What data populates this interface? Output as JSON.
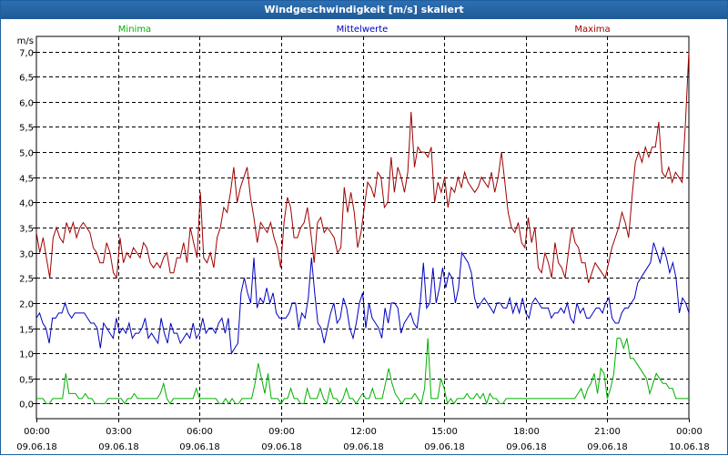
{
  "window": {
    "title": "Windgeschwindigkeit [m/s] skaliert"
  },
  "colors": {
    "min": "#00b000",
    "mean": "#0000c0",
    "max": "#a00000",
    "grid": "#000000",
    "title_bg": "#1f5fa0"
  },
  "chart_data": {
    "type": "line",
    "title": "Windgeschwindigkeit [m/s] skaliert",
    "ylabel": "m/s",
    "ylim": [
      -0.3,
      7.3
    ],
    "xlim": [
      0,
      24
    ],
    "grid": true,
    "legend_position": "top",
    "yticks": [
      "0,0",
      "0,5",
      "1,0",
      "1,5",
      "2,0",
      "2,5",
      "3,0",
      "3,5",
      "4,0",
      "4,5",
      "5,0",
      "5,5",
      "6,0",
      "6,5",
      "7,0"
    ],
    "ytick_values": [
      0,
      0.5,
      1,
      1.5,
      2,
      2.5,
      3,
      3.5,
      4,
      4.5,
      5,
      5.5,
      6,
      6.5,
      7
    ],
    "xticks": [
      {
        "time": "00:00",
        "date": "09.06.18"
      },
      {
        "time": "03:00",
        "date": "09.06.18"
      },
      {
        "time": "06:00",
        "date": "09.06.18"
      },
      {
        "time": "09:00",
        "date": "09.06.18"
      },
      {
        "time": "12:00",
        "date": "09.06.18"
      },
      {
        "time": "15:00",
        "date": "09.06.18"
      },
      {
        "time": "18:00",
        "date": "09.06.18"
      },
      {
        "time": "21:00",
        "date": "09.06.18"
      },
      {
        "time": "00:00",
        "date": "10.06.18"
      }
    ],
    "series": [
      {
        "name": "Minima",
        "values": [
          0.1,
          0.1,
          0.1,
          0.0,
          0.0,
          0.1,
          0.1,
          0.1,
          0.1,
          0.6,
          0.2,
          0.2,
          0.2,
          0.1,
          0.1,
          0.2,
          0.1,
          0.1,
          0.0,
          0.0,
          0.0,
          0.0,
          0.1,
          0.1,
          0.1,
          0.1,
          0.1,
          0.0,
          0.1,
          0.1,
          0.2,
          0.1,
          0.1,
          0.1,
          0.1,
          0.1,
          0.1,
          0.1,
          0.2,
          0.4,
          0.1,
          0.0,
          0.1,
          0.1,
          0.1,
          0.1,
          0.1,
          0.1,
          0.1,
          0.3,
          0.1,
          0.1,
          0.1,
          0.1,
          0.1,
          0.1,
          0.0,
          0.0,
          0.1,
          0.0,
          0.1,
          0.0,
          0.0,
          0.1,
          0.1,
          0.1,
          0.1,
          0.4,
          0.8,
          0.5,
          0.2,
          0.6,
          0.1,
          0.1,
          0.1,
          0.0,
          0.1,
          0.1,
          0.3,
          0.1,
          0.1,
          0.0,
          0.0,
          0.3,
          0.1,
          0.1,
          0.1,
          0.3,
          0.1,
          0.0,
          0.3,
          0.1,
          0.1,
          0.0,
          0.1,
          0.3,
          0.1,
          0.1,
          0.0,
          0.1,
          0.2,
          0.1,
          0.1,
          0.3,
          0.1,
          0.1,
          0.1,
          0.4,
          0.7,
          0.4,
          0.2,
          0.1,
          0.0,
          0.1,
          0.1,
          0.1,
          0.2,
          0.1,
          0.0,
          0.3,
          1.3,
          0.1,
          0.1,
          0.1,
          0.5,
          0.3,
          0.0,
          0.1,
          0.0,
          0.1,
          0.1,
          0.1,
          0.2,
          0.1,
          0.1,
          0.2,
          0.1,
          0.2,
          0.0,
          0.2,
          0.1,
          0.1,
          0.0,
          0.0,
          0.1,
          0.1,
          0.1,
          0.1,
          0.1,
          0.1,
          0.1,
          0.1,
          0.1,
          0.1,
          0.1,
          0.1,
          0.1,
          0.1,
          0.1,
          0.1,
          0.1,
          0.1,
          0.1,
          0.1,
          0.1,
          0.1,
          0.2,
          0.3,
          0.1,
          0.3,
          0.4,
          0.6,
          0.2,
          0.7,
          0.6,
          0.1,
          0.3,
          0.6,
          1.3,
          1.3,
          1.1,
          1.3,
          0.9,
          0.9,
          0.8,
          0.7,
          0.6,
          0.5,
          0.2,
          0.4,
          0.6,
          0.5,
          0.4,
          0.4,
          0.3,
          0.3,
          0.1,
          0.1,
          0.1,
          0.1,
          0.1
        ]
      },
      {
        "name": "Mittelwerte",
        "values": [
          1.7,
          1.8,
          1.6,
          1.5,
          1.2,
          1.7,
          1.7,
          1.8,
          1.8,
          2.0,
          1.8,
          1.7,
          1.8,
          1.8,
          1.8,
          1.8,
          1.7,
          1.6,
          1.6,
          1.5,
          1.1,
          1.6,
          1.5,
          1.4,
          1.3,
          1.7,
          1.4,
          1.5,
          1.4,
          1.6,
          1.3,
          1.4,
          1.4,
          1.5,
          1.7,
          1.3,
          1.4,
          1.3,
          1.2,
          1.7,
          1.4,
          1.2,
          1.6,
          1.4,
          1.4,
          1.2,
          1.3,
          1.4,
          1.3,
          1.6,
          1.3,
          1.4,
          1.7,
          1.4,
          1.5,
          1.5,
          1.4,
          1.6,
          1.7,
          1.4,
          1.7,
          1.0,
          1.1,
          1.2,
          2.2,
          2.5,
          2.2,
          2.0,
          2.9,
          1.9,
          2.1,
          2.0,
          2.3,
          2.0,
          2.2,
          1.8,
          1.7,
          1.7,
          1.7,
          1.8,
          2.0,
          2.0,
          1.5,
          1.8,
          1.7,
          2.1,
          2.9,
          2.2,
          1.6,
          1.5,
          1.2,
          1.5,
          1.8,
          2.0,
          1.6,
          1.7,
          2.1,
          1.9,
          1.5,
          1.3,
          1.6,
          2.0,
          2.2,
          1.5,
          2.0,
          1.7,
          1.6,
          1.5,
          1.3,
          1.9,
          1.6,
          2.0,
          2.0,
          1.9,
          1.4,
          1.6,
          1.7,
          1.8,
          1.6,
          1.5,
          2.0,
          2.8,
          1.9,
          2.0,
          2.7,
          2.0,
          2.3,
          2.7,
          2.3,
          2.6,
          2.5,
          2.0,
          2.3,
          3.0,
          2.9,
          2.8,
          2.6,
          2.1,
          1.9,
          2.0,
          2.1,
          2.0,
          1.9,
          1.8,
          2.0,
          2.0,
          1.9,
          1.9,
          2.1,
          1.8,
          2.0,
          1.8,
          2.1,
          1.8,
          1.7,
          2.0,
          2.1,
          2.0,
          1.9,
          1.9,
          1.9,
          1.7,
          1.8,
          1.8,
          1.9,
          1.8,
          2.0,
          1.7,
          1.6,
          2.0,
          1.8,
          1.9,
          1.7,
          1.7,
          1.8,
          1.9,
          1.9,
          1.8,
          2.0,
          2.1,
          1.7,
          1.6,
          1.6,
          1.8,
          1.9,
          1.9,
          2.0,
          2.1,
          2.4,
          2.5,
          2.6,
          2.7,
          2.8,
          3.2,
          3.0,
          2.8,
          3.1,
          2.9,
          2.6,
          2.8,
          2.5,
          1.8,
          2.1,
          2.0,
          1.8
        ]
      },
      {
        "name": "Maxima",
        "values": [
          3.4,
          3.0,
          3.3,
          2.9,
          2.5,
          3.3,
          3.5,
          3.3,
          3.2,
          3.6,
          3.4,
          3.6,
          3.3,
          3.5,
          3.6,
          3.5,
          3.4,
          3.1,
          3.0,
          2.8,
          2.8,
          3.2,
          3.0,
          2.6,
          2.5,
          3.3,
          2.8,
          3.0,
          2.9,
          3.1,
          3.0,
          2.9,
          3.2,
          3.1,
          2.8,
          2.7,
          2.8,
          2.7,
          2.9,
          3.0,
          2.6,
          2.6,
          2.9,
          2.9,
          3.2,
          2.8,
          3.5,
          3.2,
          2.9,
          4.2,
          2.9,
          2.8,
          3.0,
          2.7,
          3.3,
          3.5,
          3.9,
          3.8,
          4.2,
          4.7,
          4.0,
          4.3,
          4.5,
          4.7,
          4.1,
          3.7,
          3.2,
          3.6,
          3.5,
          3.4,
          3.6,
          3.3,
          3.1,
          2.7,
          3.6,
          4.1,
          3.9,
          3.3,
          3.3,
          3.5,
          3.6,
          3.9,
          3.4,
          2.8,
          3.6,
          3.7,
          3.4,
          3.5,
          3.4,
          3.3,
          3.0,
          3.1,
          4.3,
          3.8,
          4.2,
          3.8,
          3.1,
          3.4,
          3.9,
          4.4,
          4.3,
          4.1,
          4.6,
          4.5,
          3.9,
          4.0,
          4.9,
          4.2,
          4.7,
          4.5,
          4.2,
          4.6,
          5.8,
          4.7,
          5.1,
          5.0,
          5.0,
          4.9,
          5.1,
          4.0,
          4.4,
          4.2,
          4.5,
          3.9,
          4.3,
          4.2,
          4.5,
          4.3,
          4.6,
          4.4,
          4.3,
          4.2,
          4.3,
          4.5,
          4.4,
          4.3,
          4.6,
          4.2,
          4.5,
          5.0,
          4.4,
          3.8,
          3.5,
          3.4,
          3.6,
          3.2,
          3.1,
          3.7,
          3.2,
          3.5,
          2.7,
          2.6,
          3.0,
          2.8,
          2.5,
          3.2,
          2.8,
          2.7,
          2.5,
          3.0,
          3.5,
          3.2,
          3.1,
          2.8,
          2.8,
          2.4,
          2.6,
          2.8,
          2.7,
          2.6,
          2.5,
          2.8,
          3.1,
          3.3,
          3.5,
          3.8,
          3.6,
          3.3,
          4.1,
          4.8,
          5.0,
          4.8,
          5.1,
          4.9,
          5.1,
          5.1,
          5.6,
          4.6,
          4.5,
          4.7,
          4.4,
          4.6,
          4.5,
          4.4,
          5.6,
          7.0
        ]
      }
    ]
  }
}
